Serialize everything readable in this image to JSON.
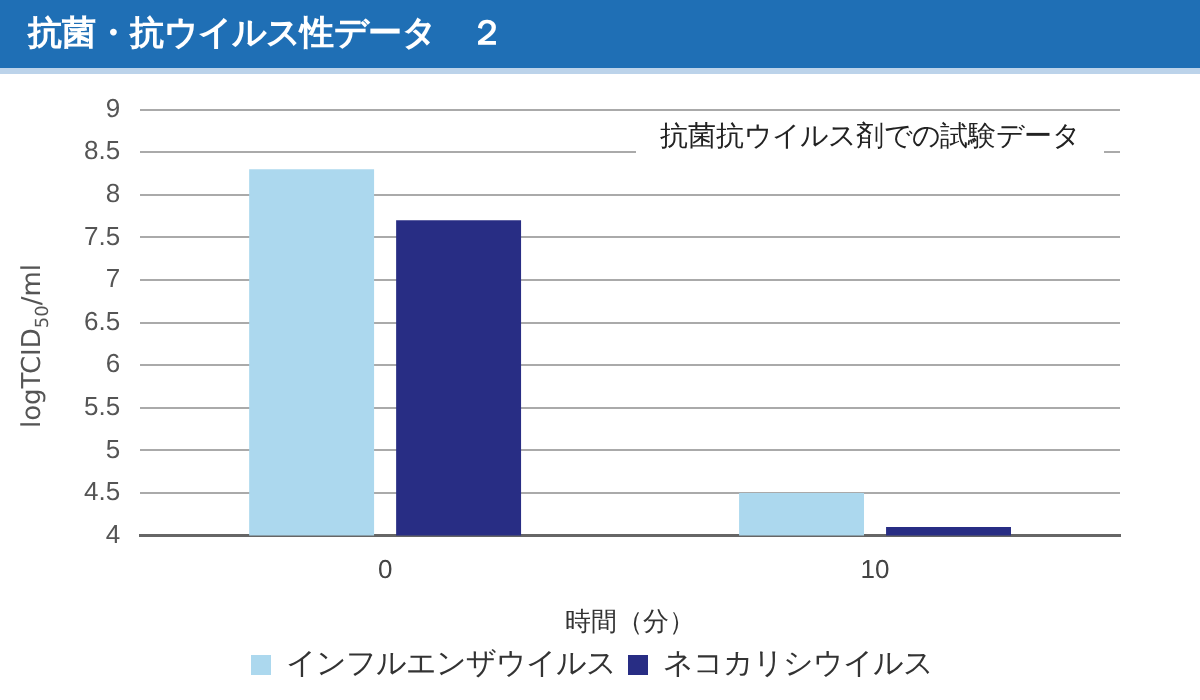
{
  "chart_data": {
    "type": "bar",
    "title": "抗菌・抗ウイルス性データ　２",
    "annotations": [
      "抗菌抗ウイルス剤での試験データ"
    ],
    "xlabel": "時間（分）",
    "ylabel": "logTCID$_{50}$/ml",
    "categories": [
      "0",
      "10"
    ],
    "series": [
      {
        "name": "インフルエンザウイルス",
        "color": "#acd8ee",
        "values": [
          8.3,
          4.5
        ]
      },
      {
        "name": "ネコカリシウイルス",
        "color": "#282d84",
        "values": [
          7.7,
          4.1
        ]
      }
    ],
    "ylim": [
      4,
      9
    ],
    "yticks": [
      4,
      4.5,
      5,
      5.5,
      6,
      6.5,
      7,
      7.5,
      8,
      8.5,
      9
    ],
    "grid": "y",
    "legend": "bottom"
  }
}
